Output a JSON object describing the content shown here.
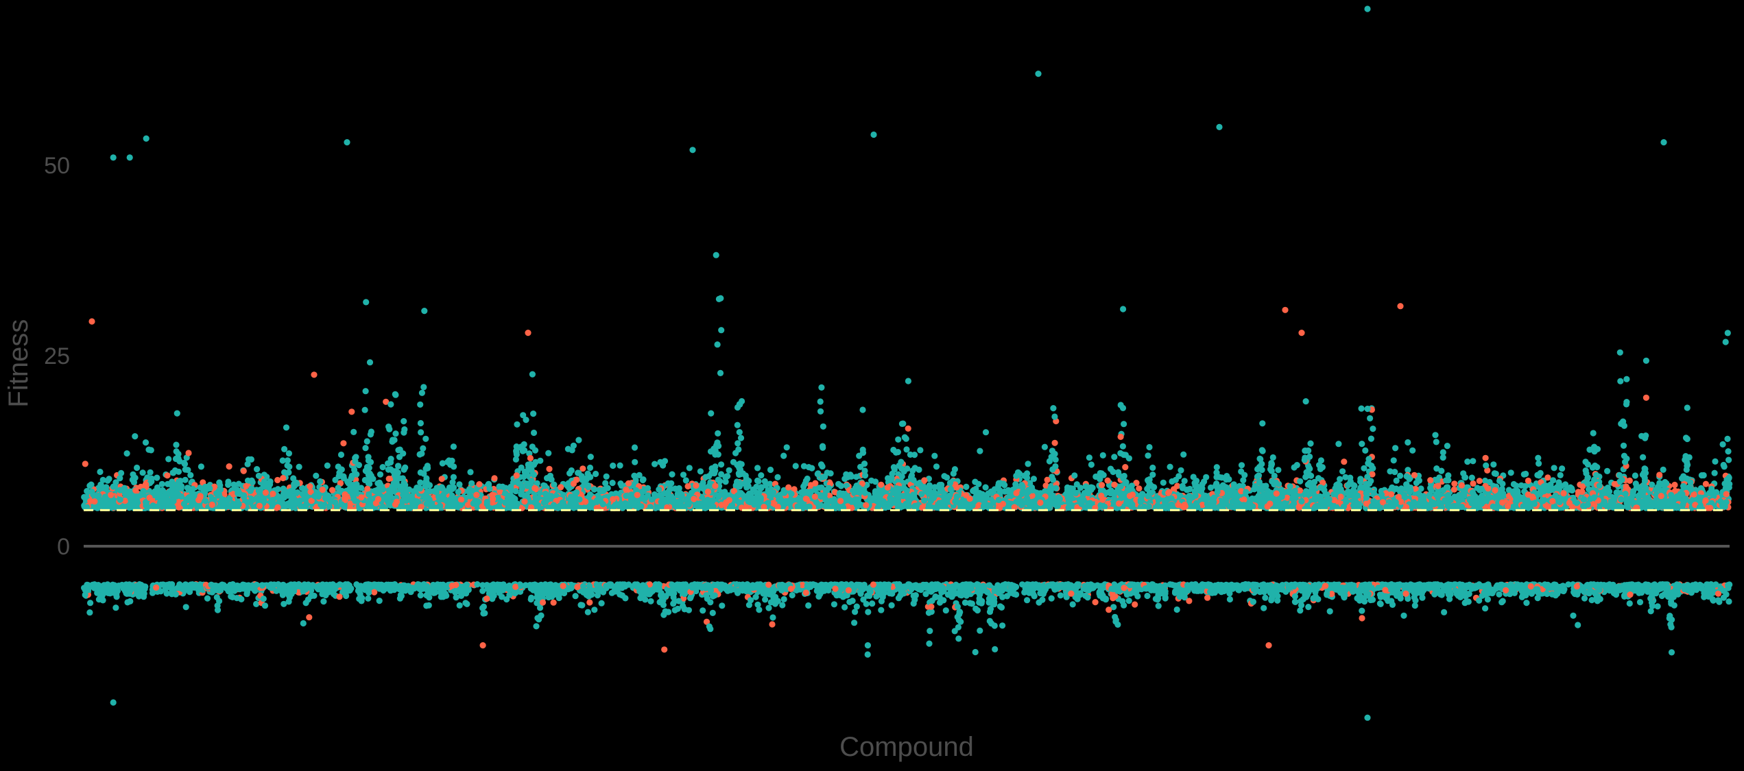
{
  "chart_data": {
    "type": "scatter",
    "title": "",
    "xlabel": "Compound",
    "ylabel": "Fitness",
    "xlim": [
      0,
      1
    ],
    "ylim": [
      -23,
      71.5
    ],
    "yticks": [
      0,
      25,
      50
    ],
    "x_tick_labels_shown": false,
    "grid": false,
    "legend": "none",
    "reference_lines": [
      {
        "y": 0,
        "color": "#555555",
        "style": "solid"
      },
      {
        "y": 5,
        "color": "#FFFF99",
        "style": "dashed"
      }
    ],
    "colors": {
      "background": "#000000",
      "series_teal": "#20B2AA",
      "series_coral": "#FF6347",
      "axis_text": "#4d4d4d"
    },
    "series": [
      {
        "color": "#20B2AA",
        "share": 0.9
      },
      {
        "color": "#FF6347",
        "share": 0.1
      }
    ],
    "notable_points": [
      {
        "x": 0.005,
        "y": 29.5,
        "color": "#FF6347"
      },
      {
        "x": 0.018,
        "y": 51,
        "color": "#20B2AA"
      },
      {
        "x": 0.028,
        "y": 51,
        "color": "#20B2AA"
      },
      {
        "x": 0.038,
        "y": 53.5,
        "color": "#20B2AA"
      },
      {
        "x": 0.14,
        "y": 22.5,
        "color": "#FF6347"
      },
      {
        "x": 0.16,
        "y": 53,
        "color": "#20B2AA"
      },
      {
        "x": 0.27,
        "y": 28,
        "color": "#FF6347"
      },
      {
        "x": 0.37,
        "y": 52,
        "color": "#20B2AA"
      },
      {
        "x": 0.48,
        "y": 54,
        "color": "#20B2AA"
      },
      {
        "x": 0.58,
        "y": 62,
        "color": "#20B2AA"
      },
      {
        "x": 0.69,
        "y": 55,
        "color": "#20B2AA"
      },
      {
        "x": 0.73,
        "y": 31,
        "color": "#FF6347"
      },
      {
        "x": 0.74,
        "y": 28,
        "color": "#FF6347"
      },
      {
        "x": 0.78,
        "y": 70.5,
        "color": "#20B2AA"
      },
      {
        "x": 0.8,
        "y": 31.5,
        "color": "#FF6347"
      },
      {
        "x": 0.96,
        "y": 53,
        "color": "#20B2AA"
      },
      {
        "x": 0.018,
        "y": -20.5,
        "color": "#20B2AA"
      },
      {
        "x": 0.78,
        "y": -22.5,
        "color": "#20B2AA"
      },
      {
        "x": 0.72,
        "y": -13,
        "color": "#FF6347"
      }
    ]
  }
}
